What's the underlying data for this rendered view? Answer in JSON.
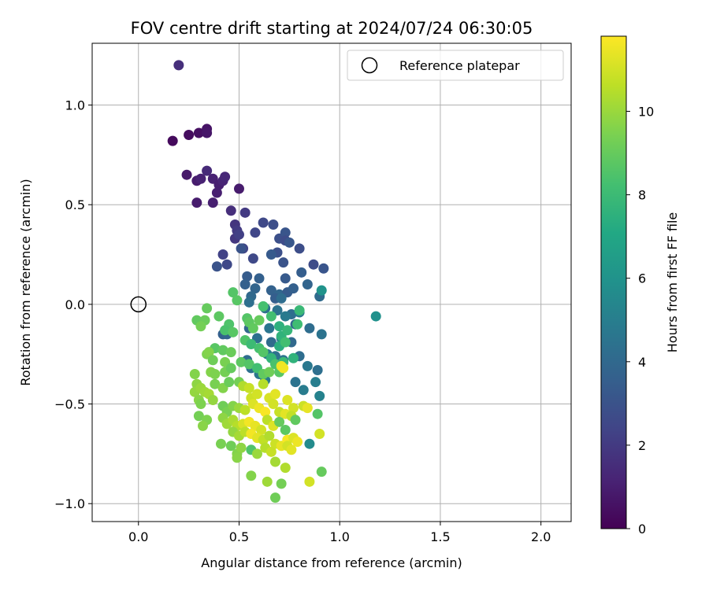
{
  "chart_data": {
    "type": "scatter",
    "title": "FOV centre drift starting at 2024/07/24 06:30:05",
    "xlabel": "Angular distance from reference (arcmin)",
    "ylabel": "Rotation from reference (arcmin)",
    "xlim": [
      -0.23,
      2.15
    ],
    "ylim": [
      -1.09,
      1.31
    ],
    "xticks": [
      0.0,
      0.5,
      1.0,
      1.5,
      2.0
    ],
    "xtick_labels": [
      "0.0",
      "0.5",
      "1.0",
      "1.5",
      "2.0"
    ],
    "yticks": [
      -1.0,
      -0.5,
      0.0,
      0.5,
      1.0
    ],
    "ytick_labels": [
      "−1.0",
      "−0.5",
      "0.0",
      "0.5",
      "1.0"
    ],
    "grid": true,
    "legend": {
      "placement": "upper-right",
      "entries": [
        "Reference platepar"
      ]
    },
    "reference_point": {
      "x": 0.0,
      "y": 0.0,
      "marker": "open-circle",
      "label": "Reference platepar"
    },
    "colorbar": {
      "label": "Hours from first FF file",
      "colormap": "viridis",
      "range": [
        0,
        11.8
      ],
      "ticks": [
        0,
        2,
        4,
        6,
        8,
        10
      ],
      "tick_labels": [
        "0",
        "2",
        "4",
        "6",
        "8",
        "10"
      ]
    },
    "points": [
      {
        "x": 0.2,
        "y": 1.2,
        "h": 1.6
      },
      {
        "x": 0.17,
        "y": 0.82,
        "h": 0.3
      },
      {
        "x": 0.25,
        "y": 0.85,
        "h": 0.4
      },
      {
        "x": 0.3,
        "y": 0.86,
        "h": 0.5
      },
      {
        "x": 0.34,
        "y": 0.88,
        "h": 0.6
      },
      {
        "x": 0.34,
        "y": 0.86,
        "h": 0.7
      },
      {
        "x": 0.24,
        "y": 0.65,
        "h": 0.8
      },
      {
        "x": 0.29,
        "y": 0.62,
        "h": 0.9
      },
      {
        "x": 0.31,
        "y": 0.63,
        "h": 1.1
      },
      {
        "x": 0.34,
        "y": 0.67,
        "h": 1.4
      },
      {
        "x": 0.37,
        "y": 0.63,
        "h": 1.1
      },
      {
        "x": 0.4,
        "y": 0.6,
        "h": 1.0
      },
      {
        "x": 0.42,
        "y": 0.62,
        "h": 1.2
      },
      {
        "x": 0.43,
        "y": 0.64,
        "h": 1.3
      },
      {
        "x": 0.39,
        "y": 0.56,
        "h": 1.0
      },
      {
        "x": 0.5,
        "y": 0.58,
        "h": 0.9
      },
      {
        "x": 0.29,
        "y": 0.51,
        "h": 0.9
      },
      {
        "x": 0.37,
        "y": 0.51,
        "h": 1.0
      },
      {
        "x": 0.46,
        "y": 0.47,
        "h": 1.6
      },
      {
        "x": 0.53,
        "y": 0.46,
        "h": 2.0
      },
      {
        "x": 0.48,
        "y": 0.4,
        "h": 1.8
      },
      {
        "x": 0.49,
        "y": 0.37,
        "h": 2.0
      },
      {
        "x": 0.48,
        "y": 0.33,
        "h": 1.9
      },
      {
        "x": 0.5,
        "y": 0.35,
        "h": 2.2
      },
      {
        "x": 0.52,
        "y": 0.28,
        "h": 2.4
      },
      {
        "x": 0.51,
        "y": 0.28,
        "h": 3.0
      },
      {
        "x": 0.62,
        "y": 0.41,
        "h": 2.6
      },
      {
        "x": 0.67,
        "y": 0.4,
        "h": 2.8
      },
      {
        "x": 0.58,
        "y": 0.36,
        "h": 2.5
      },
      {
        "x": 0.7,
        "y": 0.33,
        "h": 2.9
      },
      {
        "x": 0.73,
        "y": 0.36,
        "h": 3.1
      },
      {
        "x": 0.73,
        "y": 0.32,
        "h": 2.7
      },
      {
        "x": 0.75,
        "y": 0.31,
        "h": 3.2
      },
      {
        "x": 0.8,
        "y": 0.28,
        "h": 2.8
      },
      {
        "x": 0.42,
        "y": 0.25,
        "h": 2.3
      },
      {
        "x": 0.57,
        "y": 0.23,
        "h": 2.6
      },
      {
        "x": 0.69,
        "y": 0.26,
        "h": 2.9
      },
      {
        "x": 0.66,
        "y": 0.25,
        "h": 3.3
      },
      {
        "x": 0.39,
        "y": 0.19,
        "h": 3.0
      },
      {
        "x": 0.44,
        "y": 0.2,
        "h": 2.6
      },
      {
        "x": 0.72,
        "y": 0.21,
        "h": 3.0
      },
      {
        "x": 0.87,
        "y": 0.2,
        "h": 2.7
      },
      {
        "x": 0.92,
        "y": 0.18,
        "h": 3.1
      },
      {
        "x": 0.54,
        "y": 0.14,
        "h": 3.4
      },
      {
        "x": 0.6,
        "y": 0.13,
        "h": 3.6
      },
      {
        "x": 0.73,
        "y": 0.13,
        "h": 3.3
      },
      {
        "x": 0.81,
        "y": 0.16,
        "h": 3.5
      },
      {
        "x": 0.53,
        "y": 0.1,
        "h": 3.6
      },
      {
        "x": 0.58,
        "y": 0.08,
        "h": 3.8
      },
      {
        "x": 0.66,
        "y": 0.07,
        "h": 3.7
      },
      {
        "x": 0.7,
        "y": 0.05,
        "h": 3.9
      },
      {
        "x": 0.74,
        "y": 0.06,
        "h": 3.4
      },
      {
        "x": 0.77,
        "y": 0.08,
        "h": 3.6
      },
      {
        "x": 0.84,
        "y": 0.1,
        "h": 3.8
      },
      {
        "x": 0.56,
        "y": 0.04,
        "h": 4.0
      },
      {
        "x": 0.68,
        "y": 0.03,
        "h": 3.5
      },
      {
        "x": 0.71,
        "y": 0.03,
        "h": 4.2
      },
      {
        "x": 0.9,
        "y": 0.04,
        "h": 4.1
      },
      {
        "x": 0.55,
        "y": 0.01,
        "h": 4.3
      },
      {
        "x": 0.63,
        "y": -0.02,
        "h": 4.4
      },
      {
        "x": 0.69,
        "y": -0.03,
        "h": 4.5
      },
      {
        "x": 0.76,
        "y": -0.05,
        "h": 4.2
      },
      {
        "x": 0.8,
        "y": -0.04,
        "h": 4.7
      },
      {
        "x": 0.91,
        "y": 0.07,
        "h": 6.0
      },
      {
        "x": 1.18,
        "y": -0.06,
        "h": 5.9
      },
      {
        "x": 0.65,
        "y": -0.12,
        "h": 4.6
      },
      {
        "x": 0.73,
        "y": -0.06,
        "h": 4.8
      },
      {
        "x": 0.78,
        "y": -0.1,
        "h": 3.9
      },
      {
        "x": 0.85,
        "y": -0.12,
        "h": 4.2
      },
      {
        "x": 0.91,
        "y": -0.15,
        "h": 4.5
      },
      {
        "x": 0.42,
        "y": -0.15,
        "h": 3.6
      },
      {
        "x": 0.44,
        "y": -0.15,
        "h": 3.8
      },
      {
        "x": 0.55,
        "y": -0.12,
        "h": 4.0
      },
      {
        "x": 0.59,
        "y": -0.17,
        "h": 4.3
      },
      {
        "x": 0.66,
        "y": -0.19,
        "h": 4.1
      },
      {
        "x": 0.71,
        "y": -0.17,
        "h": 4.6
      },
      {
        "x": 0.76,
        "y": -0.19,
        "h": 4.0
      },
      {
        "x": 0.64,
        "y": -0.25,
        "h": 4.8
      },
      {
        "x": 0.68,
        "y": -0.26,
        "h": 4.4
      },
      {
        "x": 0.72,
        "y": -0.28,
        "h": 4.6
      },
      {
        "x": 0.8,
        "y": -0.26,
        "h": 4.2
      },
      {
        "x": 0.84,
        "y": -0.31,
        "h": 4.7
      },
      {
        "x": 0.89,
        "y": -0.33,
        "h": 4.3
      },
      {
        "x": 0.54,
        "y": -0.28,
        "h": 4.2
      },
      {
        "x": 0.56,
        "y": -0.32,
        "h": 4.4
      },
      {
        "x": 0.6,
        "y": -0.35,
        "h": 4.6
      },
      {
        "x": 0.63,
        "y": -0.38,
        "h": 4.8
      },
      {
        "x": 0.78,
        "y": -0.39,
        "h": 4.5
      },
      {
        "x": 0.82,
        "y": -0.43,
        "h": 4.9
      },
      {
        "x": 0.88,
        "y": -0.39,
        "h": 5.0
      },
      {
        "x": 0.9,
        "y": -0.46,
        "h": 5.2
      },
      {
        "x": 0.85,
        "y": -0.7,
        "h": 5.6
      },
      {
        "x": 0.47,
        "y": 0.06,
        "h": 8.6
      },
      {
        "x": 0.49,
        "y": 0.02,
        "h": 8.7
      },
      {
        "x": 0.34,
        "y": -0.02,
        "h": 9.0
      },
      {
        "x": 0.29,
        "y": -0.08,
        "h": 8.9
      },
      {
        "x": 0.33,
        "y": -0.08,
        "h": 9.1
      },
      {
        "x": 0.4,
        "y": -0.06,
        "h": 8.8
      },
      {
        "x": 0.31,
        "y": -0.11,
        "h": 9.3
      },
      {
        "x": 0.45,
        "y": -0.1,
        "h": 8.5
      },
      {
        "x": 0.43,
        "y": -0.13,
        "h": 8.4
      },
      {
        "x": 0.47,
        "y": -0.14,
        "h": 8.7
      },
      {
        "x": 0.54,
        "y": -0.07,
        "h": 8.6
      },
      {
        "x": 0.55,
        "y": -0.09,
        "h": 8.8
      },
      {
        "x": 0.57,
        "y": -0.12,
        "h": 8.9
      },
      {
        "x": 0.6,
        "y": -0.08,
        "h": 9.0
      },
      {
        "x": 0.62,
        "y": -0.01,
        "h": 8.3
      },
      {
        "x": 0.66,
        "y": -0.06,
        "h": 8.2
      },
      {
        "x": 0.7,
        "y": -0.11,
        "h": 7.5
      },
      {
        "x": 0.71,
        "y": -0.16,
        "h": 7.6
      },
      {
        "x": 0.74,
        "y": -0.13,
        "h": 7.8
      },
      {
        "x": 0.79,
        "y": -0.1,
        "h": 8.1
      },
      {
        "x": 0.8,
        "y": -0.03,
        "h": 7.9
      },
      {
        "x": 0.53,
        "y": -0.18,
        "h": 8.5
      },
      {
        "x": 0.56,
        "y": -0.2,
        "h": 8.0
      },
      {
        "x": 0.6,
        "y": -0.22,
        "h": 8.3
      },
      {
        "x": 0.62,
        "y": -0.24,
        "h": 8.6
      },
      {
        "x": 0.66,
        "y": -0.27,
        "h": 7.7
      },
      {
        "x": 0.7,
        "y": -0.21,
        "h": 7.4
      },
      {
        "x": 0.73,
        "y": -0.19,
        "h": 8.2
      },
      {
        "x": 0.38,
        "y": -0.22,
        "h": 8.7
      },
      {
        "x": 0.42,
        "y": -0.23,
        "h": 8.9
      },
      {
        "x": 0.46,
        "y": -0.24,
        "h": 9.1
      },
      {
        "x": 0.34,
        "y": -0.25,
        "h": 9.5
      },
      {
        "x": 0.35,
        "y": -0.24,
        "h": 9.6
      },
      {
        "x": 0.37,
        "y": -0.28,
        "h": 9.2
      },
      {
        "x": 0.43,
        "y": -0.29,
        "h": 9.4
      },
      {
        "x": 0.36,
        "y": -0.34,
        "h": 9.6
      },
      {
        "x": 0.38,
        "y": -0.35,
        "h": 9.5
      },
      {
        "x": 0.43,
        "y": -0.34,
        "h": 9.3
      },
      {
        "x": 0.46,
        "y": -0.32,
        "h": 9.0
      },
      {
        "x": 0.51,
        "y": -0.29,
        "h": 8.8
      },
      {
        "x": 0.55,
        "y": -0.3,
        "h": 8.6
      },
      {
        "x": 0.59,
        "y": -0.32,
        "h": 8.2
      },
      {
        "x": 0.62,
        "y": -0.35,
        "h": 8.9
      },
      {
        "x": 0.65,
        "y": -0.34,
        "h": 9.2
      },
      {
        "x": 0.68,
        "y": -0.3,
        "h": 8.4
      },
      {
        "x": 0.72,
        "y": -0.29,
        "h": 8.0
      },
      {
        "x": 0.77,
        "y": -0.27,
        "h": 7.6
      },
      {
        "x": 0.7,
        "y": -0.34,
        "h": 8.7
      },
      {
        "x": 0.28,
        "y": -0.35,
        "h": 9.6
      },
      {
        "x": 0.29,
        "y": -0.4,
        "h": 9.8
      },
      {
        "x": 0.28,
        "y": -0.44,
        "h": 9.9
      },
      {
        "x": 0.31,
        "y": -0.42,
        "h": 10.0
      },
      {
        "x": 0.33,
        "y": -0.44,
        "h": 10.1
      },
      {
        "x": 0.3,
        "y": -0.48,
        "h": 9.7
      },
      {
        "x": 0.31,
        "y": -0.5,
        "h": 9.5
      },
      {
        "x": 0.35,
        "y": -0.45,
        "h": 10.2
      },
      {
        "x": 0.37,
        "y": -0.48,
        "h": 9.9
      },
      {
        "x": 0.38,
        "y": -0.4,
        "h": 9.4
      },
      {
        "x": 0.42,
        "y": -0.42,
        "h": 9.6
      },
      {
        "x": 0.45,
        "y": -0.39,
        "h": 9.1
      },
      {
        "x": 0.5,
        "y": -0.39,
        "h": 9.3
      },
      {
        "x": 0.52,
        "y": -0.41,
        "h": 10.4
      },
      {
        "x": 0.55,
        "y": -0.42,
        "h": 10.8
      },
      {
        "x": 0.56,
        "y": -0.47,
        "h": 10.9
      },
      {
        "x": 0.59,
        "y": -0.45,
        "h": 11.0
      },
      {
        "x": 0.62,
        "y": -0.4,
        "h": 10.5
      },
      {
        "x": 0.65,
        "y": -0.47,
        "h": 11.1
      },
      {
        "x": 0.68,
        "y": -0.45,
        "h": 11.3
      },
      {
        "x": 0.71,
        "y": -0.31,
        "h": 11.5
      },
      {
        "x": 0.72,
        "y": -0.32,
        "h": 11.6
      },
      {
        "x": 0.74,
        "y": -0.48,
        "h": 11.2
      },
      {
        "x": 0.77,
        "y": -0.52,
        "h": 11.0
      },
      {
        "x": 0.82,
        "y": -0.51,
        "h": 10.9
      },
      {
        "x": 0.84,
        "y": -0.52,
        "h": 11.4
      },
      {
        "x": 0.42,
        "y": -0.51,
        "h": 9.2
      },
      {
        "x": 0.44,
        "y": -0.54,
        "h": 9.4
      },
      {
        "x": 0.47,
        "y": -0.51,
        "h": 9.6
      },
      {
        "x": 0.5,
        "y": -0.52,
        "h": 10.0
      },
      {
        "x": 0.53,
        "y": -0.53,
        "h": 10.6
      },
      {
        "x": 0.57,
        "y": -0.5,
        "h": 11.2
      },
      {
        "x": 0.6,
        "y": -0.52,
        "h": 11.5
      },
      {
        "x": 0.63,
        "y": -0.54,
        "h": 11.7
      },
      {
        "x": 0.67,
        "y": -0.5,
        "h": 11.0
      },
      {
        "x": 0.7,
        "y": -0.54,
        "h": 10.8
      },
      {
        "x": 0.73,
        "y": -0.55,
        "h": 11.3
      },
      {
        "x": 0.76,
        "y": -0.56,
        "h": 10.7
      },
      {
        "x": 0.3,
        "y": -0.56,
        "h": 9.3
      },
      {
        "x": 0.34,
        "y": -0.58,
        "h": 9.5
      },
      {
        "x": 0.32,
        "y": -0.61,
        "h": 9.7
      },
      {
        "x": 0.42,
        "y": -0.57,
        "h": 9.8
      },
      {
        "x": 0.44,
        "y": -0.6,
        "h": 10.1
      },
      {
        "x": 0.47,
        "y": -0.58,
        "h": 10.3
      },
      {
        "x": 0.49,
        "y": -0.61,
        "h": 10.5
      },
      {
        "x": 0.52,
        "y": -0.6,
        "h": 11.1
      },
      {
        "x": 0.55,
        "y": -0.59,
        "h": 11.6
      },
      {
        "x": 0.58,
        "y": -0.61,
        "h": 11.4
      },
      {
        "x": 0.61,
        "y": -0.63,
        "h": 11.0
      },
      {
        "x": 0.64,
        "y": -0.58,
        "h": 10.6
      },
      {
        "x": 0.67,
        "y": -0.61,
        "h": 11.2
      },
      {
        "x": 0.7,
        "y": -0.59,
        "h": 9.0
      },
      {
        "x": 0.73,
        "y": -0.63,
        "h": 8.8
      },
      {
        "x": 0.78,
        "y": -0.58,
        "h": 8.9
      },
      {
        "x": 0.89,
        "y": -0.55,
        "h": 8.6
      },
      {
        "x": 0.9,
        "y": -0.65,
        "h": 11.0
      },
      {
        "x": 0.47,
        "y": -0.64,
        "h": 9.9
      },
      {
        "x": 0.5,
        "y": -0.66,
        "h": 10.2
      },
      {
        "x": 0.53,
        "y": -0.64,
        "h": 10.6
      },
      {
        "x": 0.56,
        "y": -0.65,
        "h": 11.6
      },
      {
        "x": 0.59,
        "y": -0.67,
        "h": 11.3
      },
      {
        "x": 0.62,
        "y": -0.68,
        "h": 10.7
      },
      {
        "x": 0.65,
        "y": -0.66,
        "h": 10.4
      },
      {
        "x": 0.68,
        "y": -0.7,
        "h": 10.9
      },
      {
        "x": 0.71,
        "y": -0.71,
        "h": 11.4
      },
      {
        "x": 0.74,
        "y": -0.68,
        "h": 11.7
      },
      {
        "x": 0.77,
        "y": -0.67,
        "h": 11.2
      },
      {
        "x": 0.79,
        "y": -0.69,
        "h": 11.5
      },
      {
        "x": 0.41,
        "y": -0.7,
        "h": 9.4
      },
      {
        "x": 0.46,
        "y": -0.71,
        "h": 9.2
      },
      {
        "x": 0.49,
        "y": -0.75,
        "h": 9.6
      },
      {
        "x": 0.51,
        "y": -0.72,
        "h": 9.8
      },
      {
        "x": 0.56,
        "y": -0.73,
        "h": 8.5
      },
      {
        "x": 0.59,
        "y": -0.75,
        "h": 10.0
      },
      {
        "x": 0.63,
        "y": -0.72,
        "h": 10.5
      },
      {
        "x": 0.66,
        "y": -0.74,
        "h": 10.8
      },
      {
        "x": 0.74,
        "y": -0.71,
        "h": 11.0
      },
      {
        "x": 0.76,
        "y": -0.73,
        "h": 11.3
      },
      {
        "x": 0.49,
        "y": -0.77,
        "h": 9.7
      },
      {
        "x": 0.68,
        "y": -0.79,
        "h": 10.2
      },
      {
        "x": 0.73,
        "y": -0.82,
        "h": 10.4
      },
      {
        "x": 0.56,
        "y": -0.86,
        "h": 9.6
      },
      {
        "x": 0.64,
        "y": -0.89,
        "h": 10.1
      },
      {
        "x": 0.71,
        "y": -0.9,
        "h": 9.3
      },
      {
        "x": 0.85,
        "y": -0.89,
        "h": 11.0
      },
      {
        "x": 0.91,
        "y": -0.84,
        "h": 9.0
      },
      {
        "x": 0.68,
        "y": -0.97,
        "h": 9.2
      }
    ]
  }
}
